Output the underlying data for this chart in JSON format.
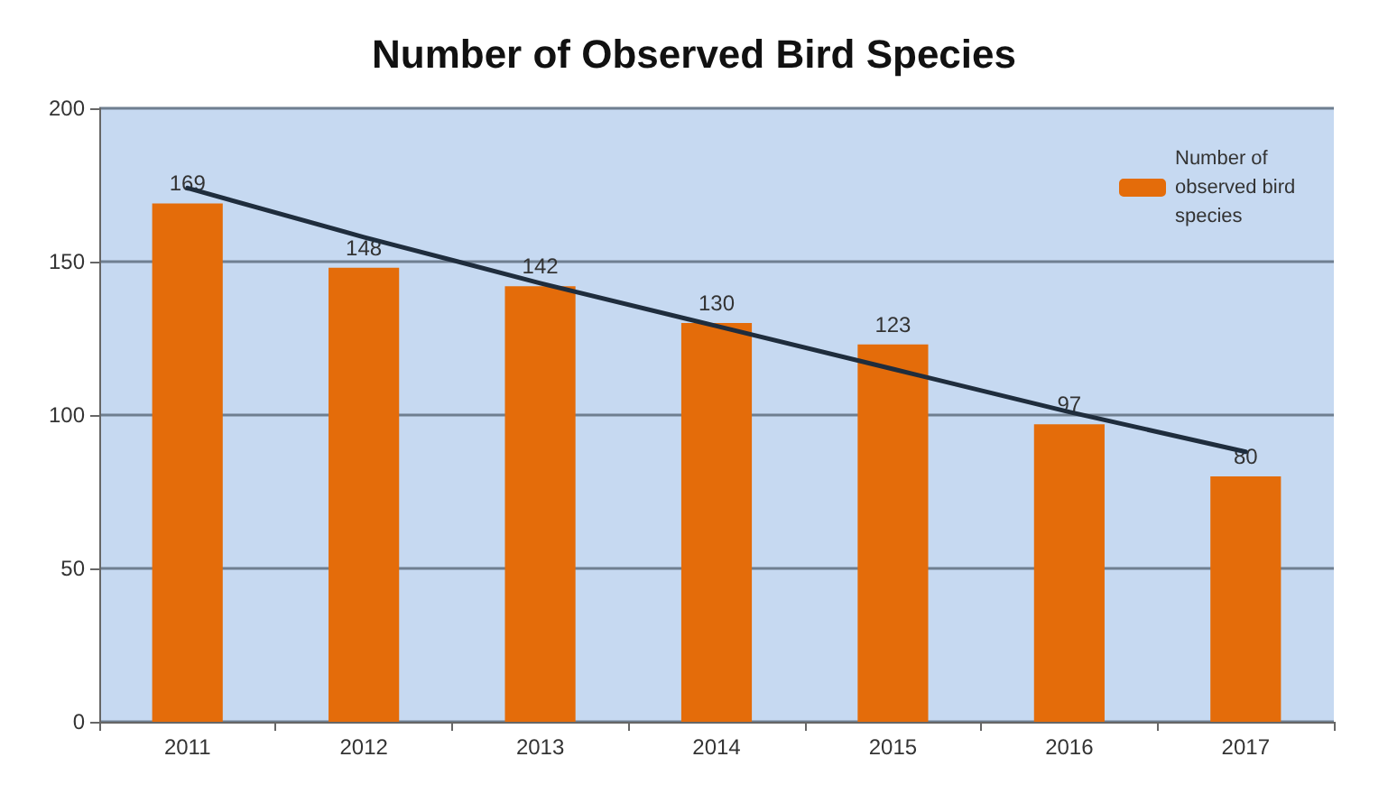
{
  "chart_data": {
    "type": "bar",
    "title": "Number of Observed Bird Species",
    "categories": [
      "2011",
      "2012",
      "2013",
      "2014",
      "2015",
      "2016",
      "2017"
    ],
    "series": [
      {
        "name": "Number of observed bird species",
        "color": "#e46c0a",
        "values": [
          169,
          148,
          142,
          130,
          123,
          97,
          80
        ],
        "value_labels": [
          "169",
          "148",
          "142",
          "130",
          "123",
          "97",
          "80"
        ]
      },
      {
        "type": "line",
        "color": "#1f2d3d",
        "values": [
          174,
          158,
          143,
          129,
          115,
          101,
          88
        ],
        "marker": "none"
      }
    ],
    "ylim": [
      0,
      200
    ],
    "yticks": [
      0,
      50,
      100,
      150,
      200
    ],
    "grid": "y",
    "legend": "top right"
  }
}
